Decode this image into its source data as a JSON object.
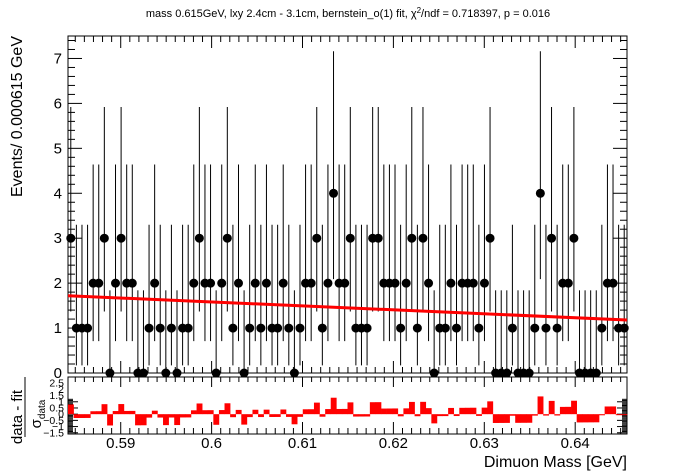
{
  "chart_data": [
    {
      "type": "scatter",
      "title_main": "mass 0.615GeV, lxy 2.4cm - 3.1cm, bernstein_o(1) fit, χ",
      "title_sup": "2",
      "title_tail": "/ndf = 0.718397, p = 0.016",
      "ylabel": "Events/ 0.000615 GeV",
      "xlim": [
        0.5842,
        0.6457
      ],
      "ylim": [
        0,
        7.5
      ],
      "yticks": [
        "0",
        "1",
        "2",
        "3",
        "4",
        "5",
        "6",
        "7"
      ],
      "points_y": [
        3,
        1,
        1,
        1,
        2,
        2,
        3,
        0,
        2,
        3,
        2,
        2,
        0,
        0,
        1,
        2,
        1,
        0,
        1,
        0,
        1,
        1,
        2,
        3,
        2,
        2,
        0,
        2,
        3,
        1,
        2,
        0,
        1,
        2,
        1,
        2,
        1,
        1,
        2,
        1,
        0,
        1,
        2,
        2,
        3,
        1,
        2,
        4,
        2,
        2,
        3,
        1,
        1,
        1,
        3,
        3,
        2,
        2,
        2,
        1,
        2,
        3,
        1,
        3,
        2,
        0,
        1,
        1,
        2,
        1,
        2,
        2,
        2,
        1,
        2,
        3,
        0,
        0,
        0,
        1,
        0,
        0,
        0,
        1,
        4,
        1,
        3,
        1,
        2,
        2,
        3,
        0,
        0,
        0,
        0,
        1,
        2,
        2,
        1,
        1
      ],
      "fit_line": {
        "x": [
          0.5842,
          0.6457
        ],
        "y": [
          1.72,
          1.18
        ],
        "color": "#ff0000"
      },
      "marker_color": "#000000"
    },
    {
      "type": "bar",
      "ylabel_num": "data - fit",
      "ylabel_den": "σ",
      "ylabel_den_sub": "data",
      "xlabel": "Dimuon Mass [GeV]",
      "xlim": [
        0.5842,
        0.6457
      ],
      "ylim": [
        -1.6,
        3.0
      ],
      "yticks": [
        "2.5",
        "2",
        "1.5",
        "1",
        "0.5",
        "0",
        "−0.5",
        "−1",
        "−1.5"
      ],
      "xticks": [
        {
          "value": 0.59,
          "label": "0.59"
        },
        {
          "value": 0.6,
          "label": "0.6"
        },
        {
          "value": 0.61,
          "label": "0.61"
        },
        {
          "value": 0.62,
          "label": "0.62"
        },
        {
          "value": 0.63,
          "label": "0.63"
        },
        {
          "value": 0.64,
          "label": "0.64"
        }
      ],
      "bar_color": "#ff0000"
    }
  ]
}
